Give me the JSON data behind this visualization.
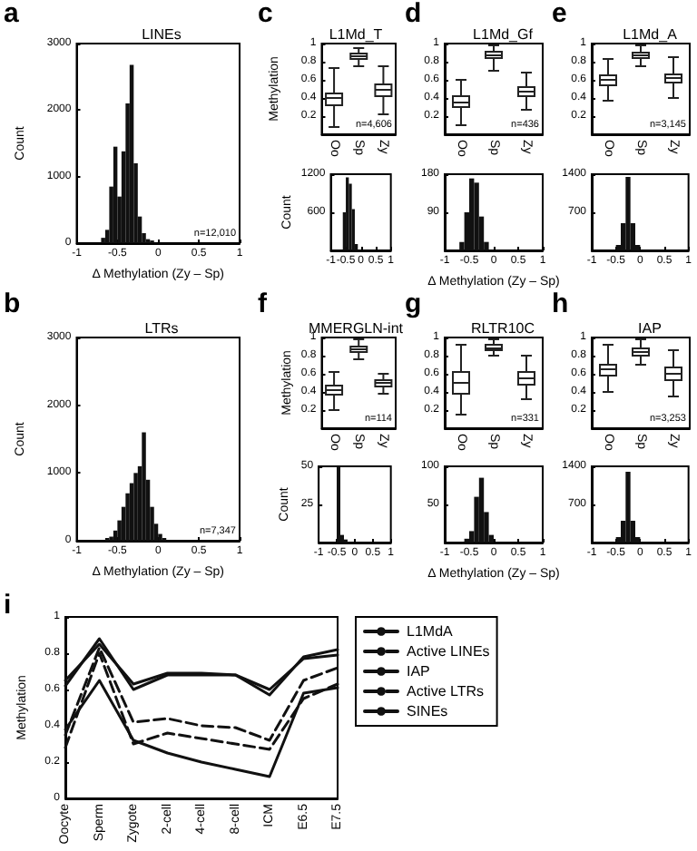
{
  "chart_data": [
    {
      "type": "histogram",
      "title": "LINEs",
      "xlabel": "Δ Methylation (Zy – Sp)",
      "ylabel": "Count",
      "annotations": [
        "a",
        "n=12,010"
      ],
      "color": "#111111",
      "bins": [
        -0.7,
        -0.65,
        -0.6,
        -0.55,
        -0.5,
        -0.45,
        -0.4,
        -0.35,
        -0.3,
        -0.25,
        -0.2,
        -0.15,
        -0.1,
        -0.05
      ],
      "values": [
        80,
        200,
        850,
        1450,
        700,
        1380,
        2100,
        2680,
        1200,
        400,
        150,
        60,
        40
      ],
      "xlim": [
        -1,
        1
      ],
      "xticks": [
        -1,
        -0.5,
        0,
        0.5,
        1
      ],
      "ylim": [
        0,
        3000
      ],
      "yticks": [
        0,
        1000,
        2000,
        3000
      ]
    },
    {
      "type": "histogram",
      "title": "LTRs",
      "xlabel": "Δ Methylation (Zy – Sp)",
      "ylabel": "Count",
      "annotations": [
        "b",
        "n=7,347"
      ],
      "color": "#111111",
      "bins": [
        -0.65,
        -0.6,
        -0.55,
        -0.5,
        -0.45,
        -0.4,
        -0.35,
        -0.3,
        -0.25,
        -0.2,
        -0.15,
        -0.1,
        -0.05,
        0,
        0.05,
        0.1
      ],
      "values": [
        40,
        60,
        150,
        300,
        500,
        700,
        850,
        1000,
        1100,
        1600,
        900,
        500,
        250,
        100,
        40
      ],
      "xlim": [
        -1,
        1
      ],
      "xticks": [
        -1,
        -0.5,
        0,
        0.5,
        1
      ],
      "ylim": [
        0,
        3000
      ],
      "yticks": [
        0,
        1000,
        2000,
        3000
      ]
    },
    {
      "type": "box",
      "title": "L1Md_T",
      "ylabel": "Methylation",
      "annotations": [
        "c",
        "n=4,606"
      ],
      "categories": [
        "Oo",
        "Sp",
        "Zy"
      ],
      "color": "#222222",
      "boxes": [
        {
          "low": 0.08,
          "q1": 0.32,
          "median": 0.4,
          "q3": 0.45,
          "high": 0.73
        },
        {
          "low": 0.75,
          "q1": 0.83,
          "median": 0.86,
          "q3": 0.89,
          "high": 0.95
        },
        {
          "low": 0.22,
          "q1": 0.42,
          "median": 0.49,
          "q3": 0.55,
          "high": 0.75
        }
      ],
      "ylim": [
        0,
        1
      ],
      "yticks": [
        0.2,
        0.4,
        0.6,
        0.8,
        1
      ]
    },
    {
      "type": "histogram",
      "ylabel": "Count",
      "color": "#111111",
      "bins": [
        -0.6,
        -0.5,
        -0.4,
        -0.3,
        -0.2,
        -0.1
      ],
      "values": [
        600,
        1150,
        1050,
        650,
        100
      ],
      "xlim": [
        -1,
        1
      ],
      "xticks": [
        -1,
        -0.5,
        0,
        0.5,
        1
      ],
      "ylim": [
        0,
        1200
      ],
      "yticks": [
        600,
        1200
      ]
    },
    {
      "type": "box",
      "title": "L1Md_Gf",
      "annotations": [
        "d",
        "n=436"
      ],
      "categories": [
        "Oo",
        "Sp",
        "Zy"
      ],
      "color": "#222222",
      "boxes": [
        {
          "low": 0.1,
          "q1": 0.3,
          "median": 0.35,
          "q3": 0.42,
          "high": 0.6
        },
        {
          "low": 0.7,
          "q1": 0.84,
          "median": 0.87,
          "q3": 0.91,
          "high": 0.98
        },
        {
          "low": 0.27,
          "q1": 0.42,
          "median": 0.47,
          "q3": 0.52,
          "high": 0.68
        }
      ],
      "ylim": [
        0,
        1
      ],
      "yticks": [
        0.2,
        0.4,
        0.6,
        0.8,
        1
      ]
    },
    {
      "type": "histogram",
      "xlabel": "Δ Methylation (Zy – Sp)",
      "color": "#111111",
      "bins": [
        -0.7,
        -0.6,
        -0.5,
        -0.4,
        -0.3,
        -0.2,
        -0.1
      ],
      "values": [
        20,
        90,
        170,
        160,
        80,
        20
      ],
      "xlim": [
        -1,
        1
      ],
      "xticks": [
        -1,
        -0.5,
        0,
        0.5,
        1
      ],
      "ylim": [
        0,
        180
      ],
      "yticks": [
        90,
        180
      ]
    },
    {
      "type": "box",
      "title": "L1Md_A",
      "annotations": [
        "e",
        "n=3,145"
      ],
      "categories": [
        "Oo",
        "Sp",
        "Zy"
      ],
      "color": "#222222",
      "boxes": [
        {
          "low": 0.37,
          "q1": 0.54,
          "median": 0.6,
          "q3": 0.65,
          "high": 0.83
        },
        {
          "low": 0.75,
          "q1": 0.84,
          "median": 0.87,
          "q3": 0.9,
          "high": 0.98
        },
        {
          "low": 0.4,
          "q1": 0.57,
          "median": 0.62,
          "q3": 0.66,
          "high": 0.85
        }
      ],
      "ylim": [
        0,
        1
      ],
      "yticks": [
        0.2,
        0.4,
        0.6,
        0.8,
        1
      ]
    },
    {
      "type": "histogram",
      "color": "#111111",
      "bins": [
        -0.5,
        -0.4,
        -0.3,
        -0.2,
        -0.1,
        0
      ],
      "values": [
        100,
        500,
        1350,
        500,
        100
      ],
      "xlim": [
        -1,
        1
      ],
      "xticks": [
        -1,
        -0.5,
        0,
        0.5,
        1
      ],
      "ylim": [
        0,
        1400
      ],
      "yticks": [
        700,
        1400
      ]
    },
    {
      "type": "box",
      "title": "MMERGLN-int",
      "ylabel": "Methylation",
      "annotations": [
        "f",
        "n=114"
      ],
      "categories": [
        "Oo",
        "Sp",
        "Zy"
      ],
      "color": "#222222",
      "boxes": [
        {
          "low": 0.2,
          "q1": 0.37,
          "median": 0.42,
          "q3": 0.47,
          "high": 0.62
        },
        {
          "low": 0.76,
          "q1": 0.84,
          "median": 0.87,
          "q3": 0.9,
          "high": 0.98
        },
        {
          "low": 0.38,
          "q1": 0.46,
          "median": 0.5,
          "q3": 0.53,
          "high": 0.6
        }
      ],
      "ylim": [
        0,
        1
      ],
      "yticks": [
        0.2,
        0.4,
        0.6,
        0.8,
        1
      ]
    },
    {
      "type": "histogram",
      "ylabel": "Count",
      "color": "#111111",
      "bins": [
        -0.5,
        -0.4,
        -0.3,
        -0.2
      ],
      "values": [
        50,
        5,
        2
      ],
      "xlim": [
        -1,
        1
      ],
      "xticks": [
        -1,
        -0.5,
        0,
        0.5,
        1
      ],
      "ylim": [
        0,
        50
      ],
      "yticks": [
        25,
        50
      ]
    },
    {
      "type": "box",
      "title": "RLTR10C",
      "annotations": [
        "g",
        "n=331"
      ],
      "categories": [
        "Oo",
        "Sp",
        "Zy"
      ],
      "color": "#222222",
      "boxes": [
        {
          "low": 0.15,
          "q1": 0.38,
          "median": 0.5,
          "q3": 0.62,
          "high": 0.92
        },
        {
          "low": 0.8,
          "q1": 0.86,
          "median": 0.88,
          "q3": 0.92,
          "high": 0.98
        },
        {
          "low": 0.32,
          "q1": 0.48,
          "median": 0.55,
          "q3": 0.62,
          "high": 0.8
        }
      ],
      "ylim": [
        0,
        1
      ],
      "yticks": [
        0.2,
        0.4,
        0.6,
        0.8,
        1
      ]
    },
    {
      "type": "histogram",
      "xlabel": "Δ Methylation (Zy – Sp)",
      "color": "#111111",
      "bins": [
        -0.6,
        -0.5,
        -0.4,
        -0.3,
        -0.2,
        -0.1,
        0
      ],
      "values": [
        5,
        15,
        60,
        85,
        40,
        10
      ],
      "xlim": [
        -1,
        1
      ],
      "xticks": [
        -1,
        -0.5,
        0,
        0.5,
        1
      ],
      "ylim": [
        0,
        100
      ],
      "yticks": [
        50,
        100
      ]
    },
    {
      "type": "box",
      "title": "IAP",
      "annotations": [
        "h",
        "n=3,253"
      ],
      "categories": [
        "Oo",
        "Sp",
        "Zy"
      ],
      "color": "#222222",
      "boxes": [
        {
          "low": 0.4,
          "q1": 0.58,
          "median": 0.65,
          "q3": 0.7,
          "high": 0.92
        },
        {
          "low": 0.7,
          "q1": 0.8,
          "median": 0.84,
          "q3": 0.88,
          "high": 0.98
        },
        {
          "low": 0.35,
          "q1": 0.53,
          "median": 0.6,
          "q3": 0.67,
          "high": 0.86
        }
      ],
      "ylim": [
        0,
        1
      ],
      "yticks": [
        0.2,
        0.4,
        0.6,
        0.8,
        1
      ]
    },
    {
      "type": "histogram",
      "color": "#111111",
      "bins": [
        -0.5,
        -0.4,
        -0.3,
        -0.2,
        -0.1,
        0
      ],
      "values": [
        100,
        400,
        1300,
        400,
        100
      ],
      "xlim": [
        -1,
        1
      ],
      "xticks": [
        -1,
        -0.5,
        0,
        0.5,
        1
      ],
      "ylim": [
        0,
        1400
      ],
      "yticks": [
        700,
        1400
      ]
    },
    {
      "type": "line",
      "ylabel": "Methylation",
      "annotations": [
        "i"
      ],
      "legend": "right",
      "marker": "none",
      "categories": [
        "Oocyte",
        "Sperm",
        "Zygote",
        "2-cell",
        "4-cell",
        "8-cell",
        "ICM",
        "E6.5",
        "E7.5"
      ],
      "ylim": [
        0,
        1
      ],
      "yticks": [
        0,
        0.2,
        0.4,
        0.6,
        0.8,
        1
      ],
      "series": [
        {
          "name": "L1MdA",
          "color": "#111111",
          "line_style": "solid",
          "values": [
            0.62,
            0.88,
            0.6,
            0.68,
            0.68,
            0.68,
            0.57,
            0.78,
            0.82
          ]
        },
        {
          "name": "Active LINEs",
          "color": "#111111",
          "line_style": "dashed",
          "values": [
            0.35,
            0.83,
            0.42,
            0.44,
            0.4,
            0.39,
            0.32,
            0.65,
            0.72
          ]
        },
        {
          "name": "IAP",
          "color": "#111111",
          "line_style": "solid",
          "values": [
            0.65,
            0.85,
            0.63,
            0.69,
            0.69,
            0.68,
            0.6,
            0.77,
            0.79
          ]
        },
        {
          "name": "Active LTRs",
          "color": "#111111",
          "line_style": "dashed",
          "values": [
            0.28,
            0.8,
            0.3,
            0.36,
            0.33,
            0.3,
            0.27,
            0.55,
            0.63
          ]
        },
        {
          "name": "SINEs",
          "color": "#111111",
          "line_style": "solid",
          "values": [
            0.38,
            0.65,
            0.32,
            0.25,
            0.2,
            0.16,
            0.12,
            0.58,
            0.61
          ]
        }
      ]
    }
  ]
}
